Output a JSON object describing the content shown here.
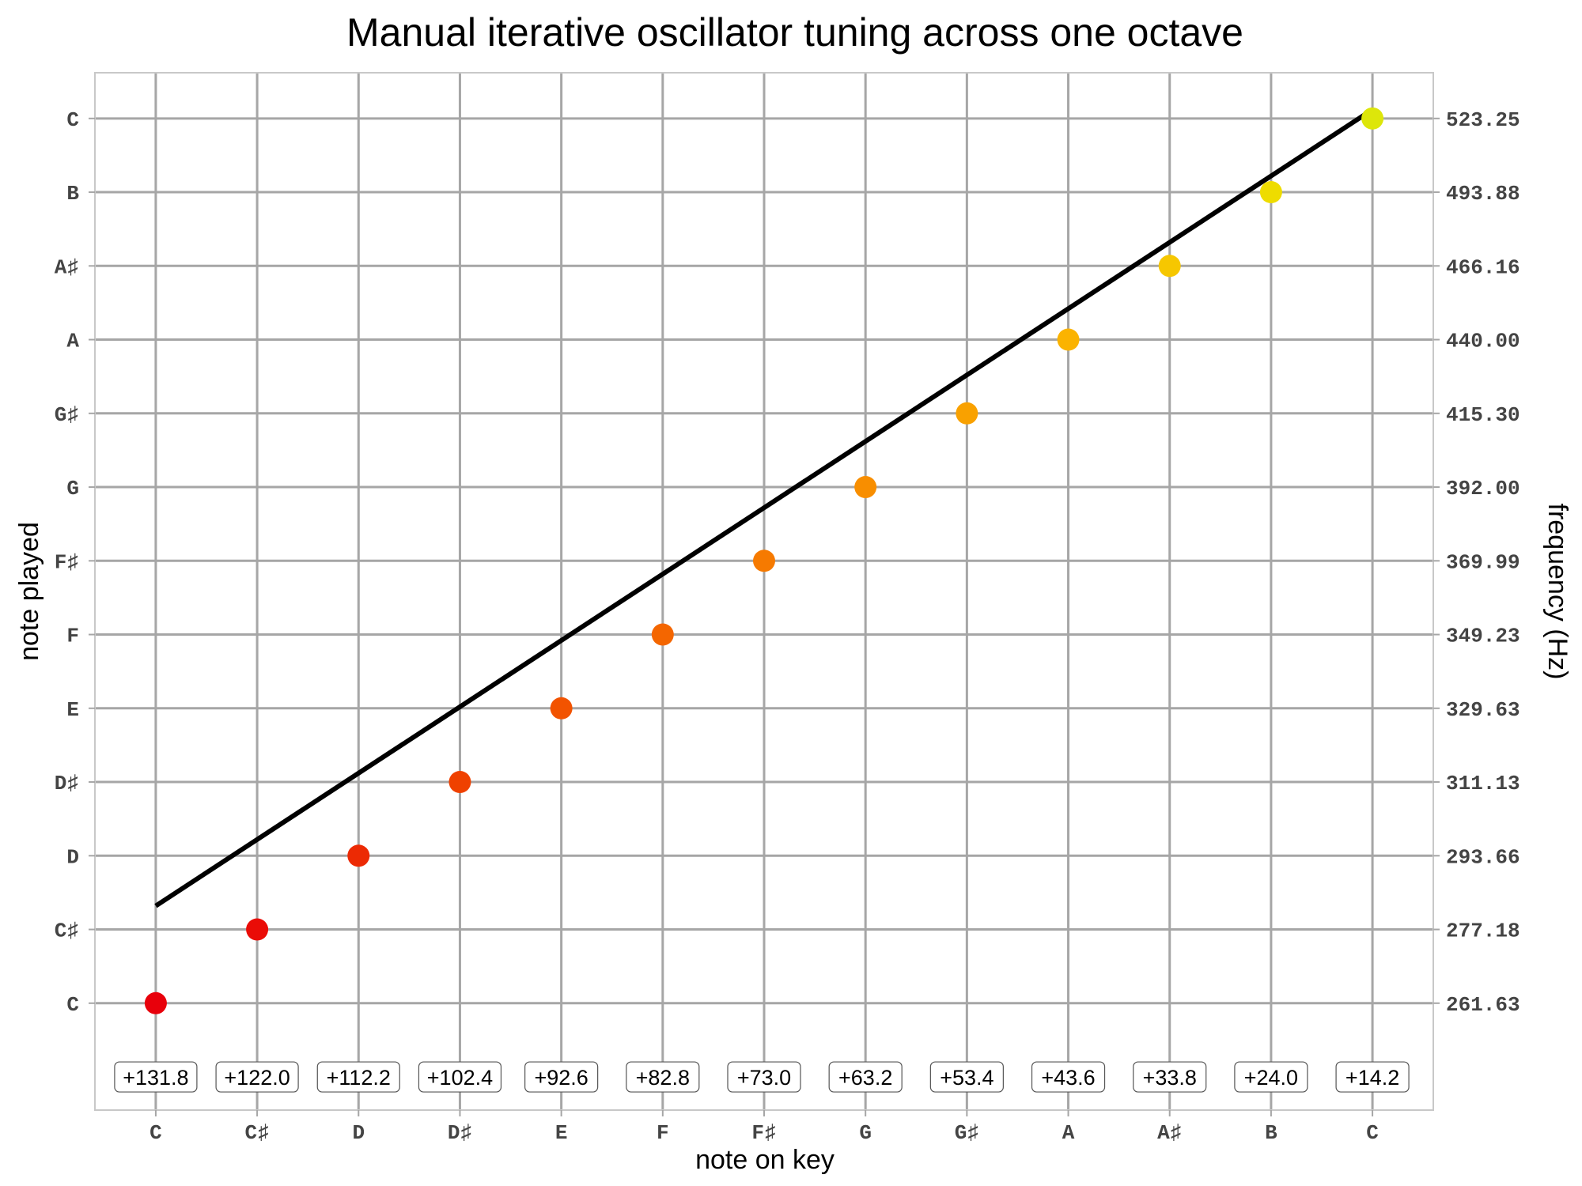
{
  "chart_data": {
    "type": "scatter",
    "title": "Manual iterative oscillator tuning across one octave",
    "xlabel": "note on key",
    "ylabel": "note played",
    "ylabel_right": "frequency (Hz)",
    "x_ticks": [
      "C",
      "C♯",
      "D",
      "D♯",
      "E",
      "F",
      "F♯",
      "G",
      "G♯",
      "A",
      "A♯",
      "B",
      "C"
    ],
    "y_ticks": [
      "C",
      "C♯",
      "D",
      "D♯",
      "E",
      "F",
      "F♯",
      "G",
      "G♯",
      "A",
      "A♯",
      "B",
      "C"
    ],
    "y_ticks_right": [
      "261.63",
      "277.18",
      "293.66",
      "311.13",
      "329.63",
      "349.23",
      "369.99",
      "392.00",
      "415.30",
      "440.00",
      "466.16",
      "493.88",
      "523.25"
    ],
    "xlim": [
      -0.6,
      12.6
    ],
    "ylim": [
      -1.45,
      12.62
    ],
    "points": {
      "x": [
        0,
        1,
        2,
        3,
        4,
        5,
        6,
        7,
        8,
        9,
        10,
        11,
        12
      ],
      "y": [
        0,
        1,
        2,
        3,
        4,
        5,
        6,
        7,
        8,
        9,
        10,
        11,
        12
      ],
      "colors": [
        "#e8000b",
        "#ea0c07",
        "#ec2a04",
        "#ef4100",
        "#f25300",
        "#f46600",
        "#f67a00",
        "#f88e00",
        "#f9a100",
        "#fbb300",
        "#f6c700",
        "#eedc00",
        "#dde60a"
      ]
    },
    "line": {
      "x": [
        0,
        12
      ],
      "y": [
        1.32,
        12.12
      ],
      "color": "#000000"
    },
    "offsets": [
      "+131.8",
      "+122.0",
      "+112.2",
      "+102.4",
      "+92.6",
      "+82.8",
      "+73.0",
      "+63.2",
      "+53.4",
      "+43.6",
      "+33.8",
      "+24.0",
      "+14.2"
    ],
    "offset_y": -1.0,
    "grid": true
  }
}
